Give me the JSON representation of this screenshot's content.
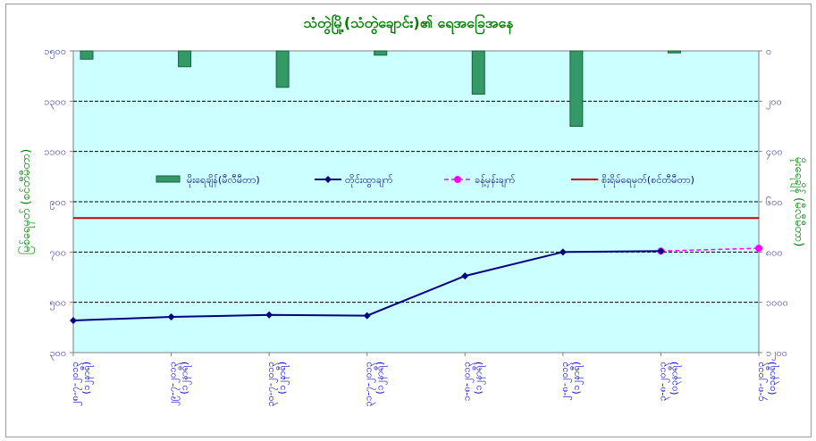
{
  "chart_data": {
    "type": "bar+line",
    "title": "သံတွဲမြို့(သံတွဲချောင်း)၏ ရေအခြေအနေ",
    "ylabel_left": "မြစ်ရေမှတ် (စင်တီမီတာ)",
    "ylabel_right": "မိုးရေချိန် (မီလီမီတာ)",
    "categories": [
      "၂၈-၇-၂၀၁၃ (၁၂နာရီ)",
      "၂၉-၇-၂၀၁၃ (၁၂နာရီ)",
      "၃၀-၇-၂၀၁၃ (၁၂နာရီ)",
      "၃၁-၇-၂၀၁၃ (၁၂နာရီ)",
      "၁-၈-၂၀၁၃ (၁၂နာရီ)",
      "၂-၈-၂၀၁၃ (၁၂နာရီ)",
      "၃-၈-၂၀၁၃ (၀၃နာရီ)",
      "၄-၈-၂၀၁၃ (၀၃နာရီ)"
    ],
    "left_axis": {
      "min": 300,
      "max": 1500,
      "ticks": [
        "၃၀၀",
        "၅၀၀",
        "၇၀၀",
        "၉၀၀",
        "၁၁၀၀",
        "၁၃၀၀",
        "၁၅၀၀"
      ],
      "tick_values": [
        300,
        500,
        700,
        900,
        1100,
        1300,
        1500
      ]
    },
    "right_axis": {
      "min": 0,
      "max": 1200,
      "reversed": true,
      "ticks": [
        "၀",
        "၂၀၀",
        "၄၀၀",
        "၆၀၀",
        "၈၀၀",
        "၁၀၀၀",
        "၁၂၀၀"
      ],
      "tick_values": [
        0,
        200,
        400,
        600,
        800,
        1000,
        1200
      ]
    },
    "grid": true,
    "danger_level": 835,
    "series": [
      {
        "name": "မိုးရေချိန်(မီလီမီတာ)",
        "kind": "bar",
        "axis": "right",
        "color": "#339966",
        "values": [
          33,
          63,
          145,
          17,
          172,
          300,
          8,
          0
        ]
      },
      {
        "name": "တိုင်းထွာချက်",
        "kind": "line",
        "axis": "left",
        "color": "#000080",
        "values": [
          428,
          442,
          450,
          447,
          605,
          700,
          704,
          null
        ]
      },
      {
        "name": "ခန့်မှန်းချက်",
        "kind": "dashed-line",
        "axis": "left",
        "color": "#ff00ff",
        "values": [
          null,
          null,
          null,
          null,
          null,
          null,
          704,
          715
        ]
      },
      {
        "name": "စိုးရိမ်ရေမှတ်(စင်တီမီတာ)",
        "kind": "hline",
        "axis": "left",
        "color": "#cc0000",
        "value": 835
      }
    ],
    "legend_position": "middle"
  }
}
